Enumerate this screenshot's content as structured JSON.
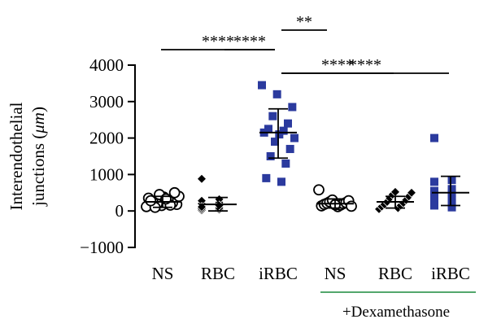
{
  "chart_data": {
    "type": "scatter",
    "ylabel_main": "Interendothelial",
    "ylabel_pre": "junctions (",
    "ylabel_unit": "μm",
    "ylabel_post": ")",
    "ylim": [
      -1000,
      4000
    ],
    "yticks": [
      4000,
      3000,
      2000,
      1000,
      0,
      -1000
    ],
    "ytick_labels": [
      "4000",
      "3000",
      "2000",
      "1000",
      "0",
      "−1000"
    ],
    "categories": [
      "NS",
      "RBC",
      "iRBC",
      "NS",
      "RBC",
      "iRBC"
    ],
    "group_label": "+Dexamethasone",
    "group_line_color": "#1a8a3c",
    "series": [
      {
        "category": "NS",
        "marker": "circle-open",
        "color": "#000000",
        "mean": 250,
        "sd_low": 100,
        "sd_high": 400,
        "values": [
          120,
          150,
          180,
          200,
          220,
          250,
          300,
          350,
          380,
          400,
          450,
          500,
          100,
          160,
          280,
          330
        ]
      },
      {
        "category": "RBC",
        "marker": "diamond",
        "color": "#000000",
        "mean": 180,
        "sd_low": 0,
        "sd_high": 370,
        "values": [
          20,
          40,
          60,
          100,
          130,
          160,
          200,
          230,
          280,
          320,
          880,
          80,
          110,
          150
        ]
      },
      {
        "category": "iRBC",
        "marker": "square",
        "color": "#2b3a9e",
        "mean": 2150,
        "sd_low": 1450,
        "sd_high": 2800,
        "values": [
          3450,
          3200,
          2850,
          2600,
          2400,
          2250,
          2200,
          2150,
          2100,
          2000,
          1900,
          1700,
          1500,
          1300,
          900,
          800
        ]
      },
      {
        "category": "NS",
        "marker": "circle-open",
        "color": "#000000",
        "mean": 200,
        "sd_low": 80,
        "sd_high": 330,
        "values": [
          580,
          120,
          140,
          160,
          180,
          200,
          210,
          230,
          250,
          280,
          300,
          130,
          170
        ]
      },
      {
        "category": "RBC",
        "marker": "diamond",
        "color": "#000000",
        "mean": 250,
        "sd_low": 80,
        "sd_high": 400,
        "values": [
          50,
          80,
          120,
          150,
          180,
          220,
          250,
          300,
          350,
          400,
          450,
          500,
          520
        ]
      },
      {
        "category": "iRBC",
        "marker": "square",
        "color": "#2b3a9e",
        "mean": 500,
        "sd_low": 150,
        "sd_high": 950,
        "values": [
          2000,
          850,
          800,
          600,
          550,
          500,
          450,
          400,
          350,
          300,
          250,
          200,
          150,
          100
        ]
      }
    ],
    "significance": [
      {
        "label": "****",
        "from": 0,
        "to": 2,
        "level": 1
      },
      {
        "label": "****",
        "from": 1,
        "to": 2,
        "level": 3
      },
      {
        "label": "****",
        "from": 2,
        "to": 3,
        "level": 3
      },
      {
        "label": "****",
        "from": 2,
        "to": 4,
        "level": 2
      },
      {
        "label": "**",
        "from": 2,
        "to": 5,
        "level": 0
      }
    ]
  }
}
